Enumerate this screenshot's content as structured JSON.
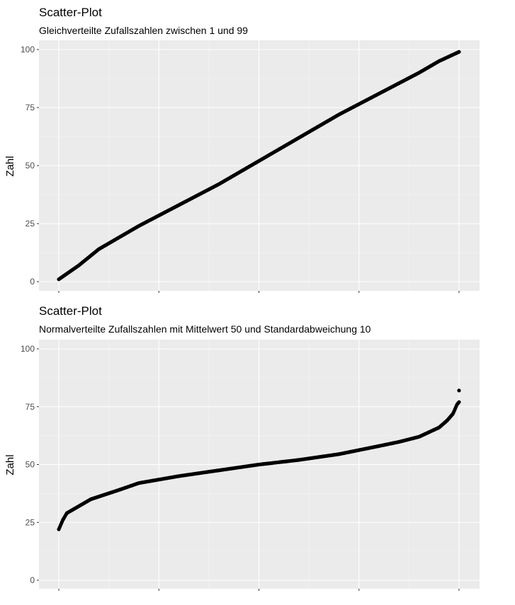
{
  "colors": {
    "panel_background": "#ebebeb",
    "grid_major": "#ffffff",
    "grid_minor": "#f5f5f5",
    "point": "#000000",
    "tick": "#333333"
  },
  "chart_data": [
    {
      "type": "scatter",
      "title": "Scatter-Plot",
      "subtitle": "Gleichverteilte Zufallszahlen zwischen 1 und 99",
      "xlabel": "",
      "ylabel": "Zahl",
      "x_tick_labels_shown": false,
      "ylim": [
        0,
        100
      ],
      "yticks": [
        0,
        25,
        50,
        75,
        100
      ],
      "grid": true,
      "n_points": 500,
      "curve_anchors": {
        "x_fraction": [
          0,
          0.05,
          0.1,
          0.2,
          0.3,
          0.4,
          0.5,
          0.6,
          0.7,
          0.8,
          0.9,
          0.95,
          1
        ],
        "y": [
          1,
          7,
          14,
          24,
          33,
          42,
          52,
          62,
          72,
          81,
          90,
          95,
          99
        ]
      }
    },
    {
      "type": "scatter",
      "title": "Scatter-Plot",
      "subtitle": "Normalverteilte Zufallszahlen mit Mittelwert 50 und Standardabweichung 10",
      "xlabel": "",
      "ylabel": "Zahl",
      "x_tick_labels_shown": false,
      "ylim": [
        0,
        100
      ],
      "yticks": [
        0,
        25,
        50,
        75,
        100
      ],
      "grid": true,
      "n_points": 500,
      "curve_anchors": {
        "x_fraction": [
          0,
          0.005,
          0.01,
          0.02,
          0.04,
          0.08,
          0.15,
          0.2,
          0.3,
          0.4,
          0.5,
          0.6,
          0.7,
          0.8,
          0.85,
          0.9,
          0.95,
          0.97,
          0.985,
          0.995,
          1
        ],
        "y": [
          22,
          24,
          26,
          29,
          31,
          35,
          39,
          42,
          45,
          47.5,
          50,
          52,
          54.5,
          58,
          59.8,
          62,
          66,
          69,
          72,
          76,
          77
        ],
        "outlier_max": 82
      }
    }
  ]
}
